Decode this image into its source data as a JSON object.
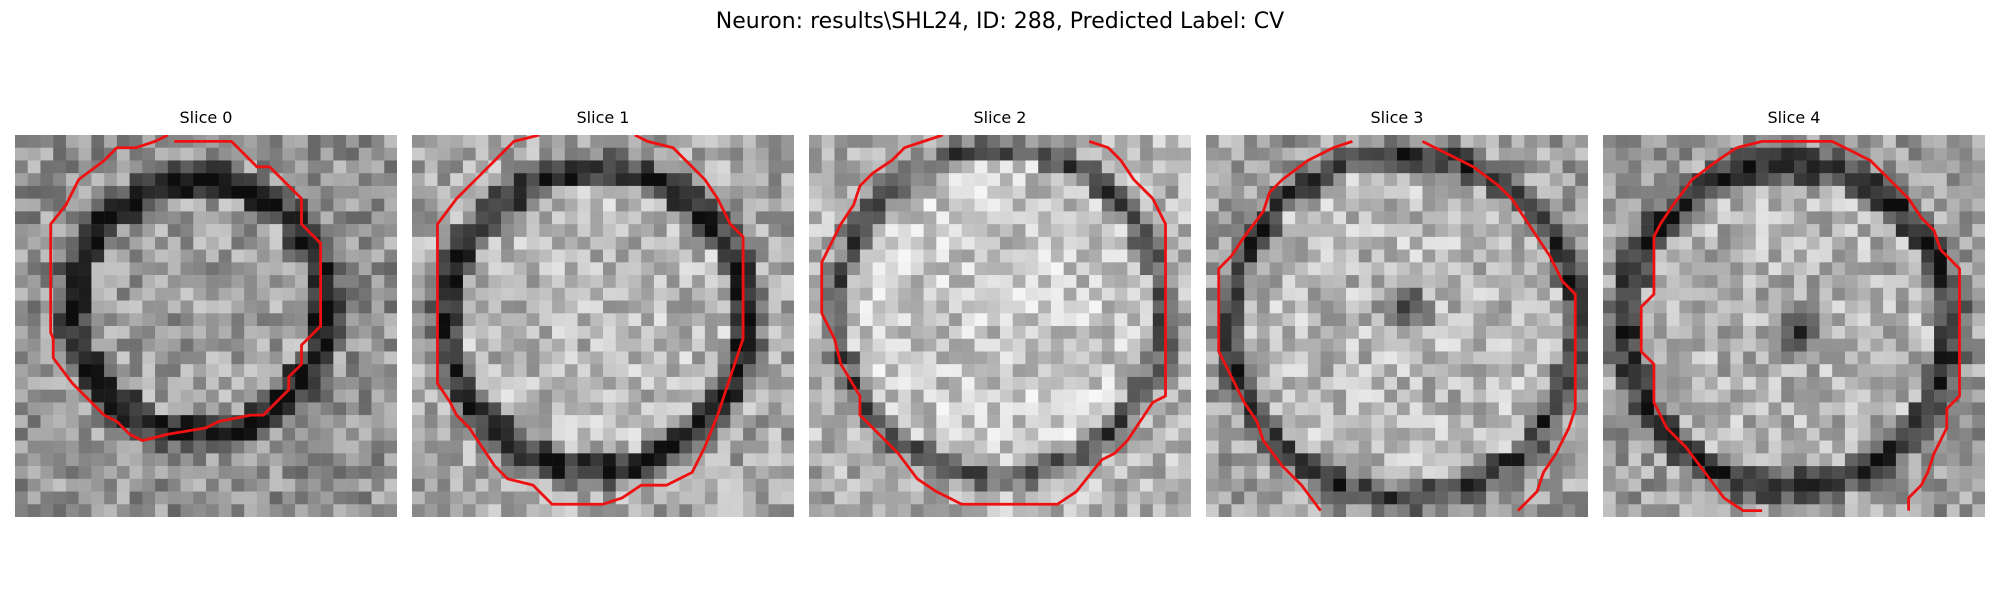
{
  "figure": {
    "title": "Neuron: results\\SHL24, ID: 288, Predicted Label: CV"
  },
  "panels": [
    {
      "title": "Slice 0"
    },
    {
      "title": "Slice 1"
    },
    {
      "title": "Slice 2"
    },
    {
      "title": "Slice 3"
    },
    {
      "title": "Slice 4"
    }
  ],
  "colors": {
    "background": "#ffffff",
    "contour": "#ee1111",
    "text": "#000000"
  }
}
